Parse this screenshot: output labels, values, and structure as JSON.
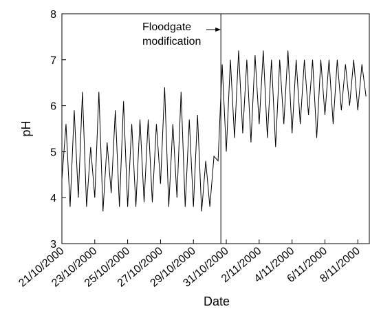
{
  "chart_data": {
    "type": "line",
    "xlabel": "Date",
    "ylabel": "pH",
    "x": [
      0,
      0.25,
      0.5,
      0.75,
      1,
      1.25,
      1.5,
      1.75,
      2,
      2.25,
      2.5,
      2.75,
      3,
      3.25,
      3.5,
      3.75,
      4,
      4.25,
      4.5,
      4.75,
      5,
      5.25,
      5.5,
      5.75,
      6,
      6.25,
      6.5,
      6.75,
      7,
      7.25,
      7.5,
      7.75,
      8,
      8.25,
      8.5,
      8.75,
      9,
      9.25,
      9.5,
      9.75,
      10,
      10.25,
      10.5,
      10.75,
      11,
      11.25,
      11.5,
      11.75,
      12,
      12.25,
      12.5,
      12.75,
      13,
      13.25,
      13.5,
      13.75,
      14,
      14.25,
      14.5,
      14.75,
      15,
      15.25,
      15.5,
      15.75,
      16,
      16.25,
      16.5,
      16.75,
      17,
      17.25,
      17.5,
      17.75,
      18,
      18.25,
      18.5
    ],
    "values": [
      4.4,
      5.6,
      3.8,
      5.9,
      4.0,
      6.3,
      3.8,
      5.1,
      4.0,
      6.3,
      3.7,
      5.2,
      4.1,
      5.9,
      3.8,
      6.1,
      3.8,
      5.6,
      3.8,
      5.7,
      3.9,
      5.7,
      3.9,
      5.6,
      4.3,
      6.4,
      3.8,
      5.6,
      4.0,
      6.3,
      3.8,
      5.7,
      3.8,
      5.8,
      3.7,
      4.8,
      3.8,
      4.9,
      4.8,
      6.9,
      5.0,
      7.0,
      5.3,
      7.2,
      5.4,
      7.0,
      5.2,
      7.1,
      5.6,
      7.2,
      5.3,
      7.0,
      5.1,
      7.0,
      5.6,
      7.2,
      5.4,
      7.0,
      5.6,
      7.0,
      5.8,
      7.0,
      5.3,
      7.0,
      5.8,
      7.0,
      5.6,
      7.0,
      5.9,
      6.9,
      6.0,
      7.0,
      5.9,
      6.9,
      6.2
    ],
    "color": "#000000",
    "xlim": [
      0,
      18.7
    ],
    "xticks": [
      {
        "value": 0,
        "label": "21/10/2000"
      },
      {
        "value": 2,
        "label": "23/10/2000"
      },
      {
        "value": 4,
        "label": "25/10/2000"
      },
      {
        "value": 6,
        "label": "27/10/2000"
      },
      {
        "value": 8,
        "label": "29/10/2000"
      },
      {
        "value": 10,
        "label": "31/10/2000"
      },
      {
        "value": 12,
        "label": "2/11/2000"
      },
      {
        "value": 14,
        "label": "4/11/2000"
      },
      {
        "value": 16,
        "label": "6/11/2000"
      },
      {
        "value": 18,
        "label": "8/11/2000"
      }
    ],
    "ylim": [
      3,
      8
    ],
    "yticks": [
      3,
      4,
      5,
      6,
      7,
      8
    ],
    "annotation": {
      "lines": [
        "Floodgate",
        "modification"
      ],
      "x": 9.67
    }
  }
}
